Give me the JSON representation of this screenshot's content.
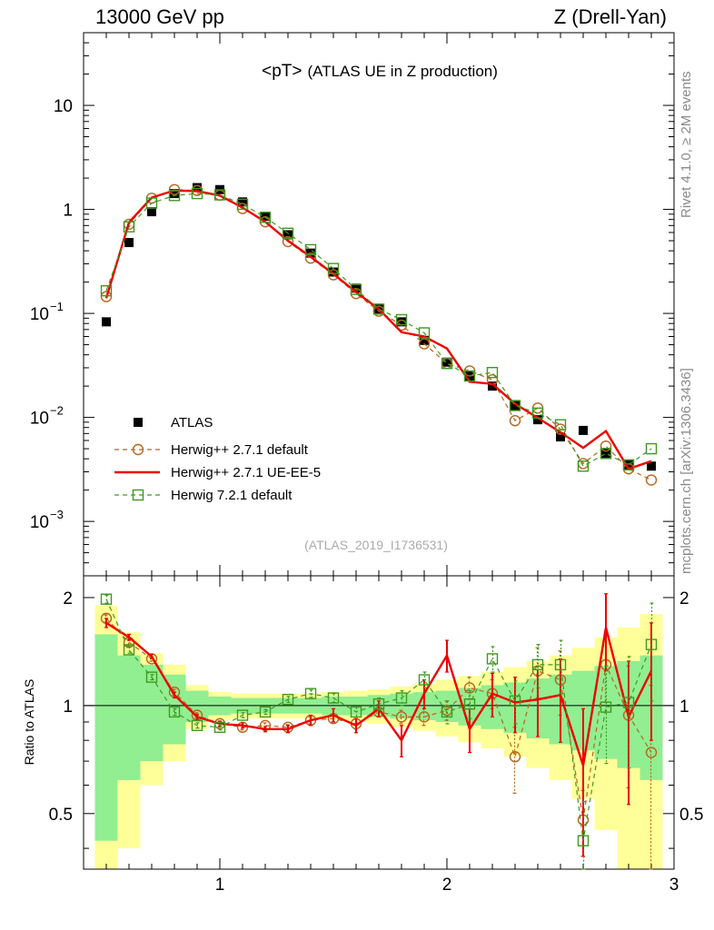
{
  "header": {
    "left": "13000 GeV pp",
    "right": "Z (Drell-Yan)"
  },
  "side_labels": {
    "rivet": "Rivet 4.1.0, ≥ 2M events",
    "mcplots": "mcplots.cern.ch [arXiv:1306.3436]"
  },
  "chart_data": {
    "type": "line",
    "title": "<pT>",
    "subtitle": "(ATLAS UE in Z production)",
    "analysis_id": "(ATLAS_2019_I1736531)",
    "xlabel": "",
    "ylabel": "",
    "ratio_ylabel": "Ratio to ATLAS",
    "xlim": [
      0.4,
      3.0
    ],
    "ylim": [
      0.0003,
      50
    ],
    "ratio_ylim": [
      0.35,
      2.3
    ],
    "yscale": "log",
    "xticks": [
      "1",
      "2",
      "3"
    ],
    "yticks_main": [
      {
        "value": 0.001,
        "base": "10",
        "exp": "−3"
      },
      {
        "value": 0.01,
        "base": "10",
        "exp": "−2"
      },
      {
        "value": 0.1,
        "base": "10",
        "exp": "−1"
      },
      {
        "value": 1,
        "label": "1"
      },
      {
        "value": 10,
        "label": "10"
      }
    ],
    "yticks_ratio": [
      "0.5",
      "1",
      "2"
    ],
    "legend_position": "bottom-left",
    "x": [
      0.5,
      0.6,
      0.7,
      0.8,
      0.9,
      1.0,
      1.1,
      1.2,
      1.3,
      1.4,
      1.5,
      1.6,
      1.7,
      1.8,
      1.9,
      2.0,
      2.1,
      2.2,
      2.3,
      2.4,
      2.5,
      2.6,
      2.7,
      2.8,
      2.9
    ],
    "series": [
      {
        "name": "ATLAS",
        "color": "#000000",
        "marker": "square-filled",
        "values": [
          0.083,
          0.48,
          0.95,
          1.42,
          1.62,
          1.55,
          1.18,
          0.86,
          0.57,
          0.38,
          0.25,
          0.175,
          0.11,
          0.083,
          0.055,
          0.034,
          0.025,
          0.02,
          0.013,
          0.0095,
          0.0065,
          0.0075,
          0.0045,
          0.0035,
          0.0034
        ],
        "ratio_band_inner": [
          0.58,
          0.38,
          0.3,
          0.22,
          0.1,
          0.06,
          0.05,
          0.05,
          0.05,
          0.05,
          0.06,
          0.06,
          0.07,
          0.08,
          0.09,
          0.1,
          0.12,
          0.14,
          0.16,
          0.19,
          0.22,
          0.25,
          0.29,
          0.33,
          0.38
        ],
        "ratio_band_outer": [
          0.9,
          0.6,
          0.4,
          0.3,
          0.14,
          0.09,
          0.08,
          0.08,
          0.08,
          0.08,
          0.09,
          0.1,
          0.11,
          0.13,
          0.15,
          0.18,
          0.21,
          0.24,
          0.28,
          0.33,
          0.38,
          0.45,
          0.55,
          0.65,
          0.8
        ]
      },
      {
        "name": "Herwig++ 2.7.1 default",
        "color": "#b5651d",
        "marker": "circle-open",
        "line": "dashed",
        "values": [
          0.145,
          0.72,
          1.28,
          1.55,
          1.52,
          1.37,
          1.02,
          0.76,
          0.49,
          0.34,
          0.235,
          0.155,
          0.105,
          0.077,
          0.051,
          0.033,
          0.028,
          0.023,
          0.0093,
          0.0123,
          0.0077,
          0.0036,
          0.0053,
          0.0032,
          0.0025
        ],
        "ratio": [
          1.75,
          1.5,
          1.35,
          1.09,
          0.94,
          0.89,
          0.87,
          0.88,
          0.87,
          0.91,
          0.92,
          0.89,
          0.96,
          0.93,
          0.93,
          0.97,
          1.12,
          1.08,
          0.72,
          1.25,
          1.18,
          0.48,
          1.3,
          0.94,
          0.74
        ],
        "ratio_err": [
          0.04,
          0.03,
          0.02,
          0.02,
          0.015,
          0.015,
          0.015,
          0.015,
          0.015,
          0.02,
          0.02,
          0.03,
          0.03,
          0.04,
          0.05,
          0.06,
          0.08,
          0.1,
          0.15,
          0.2,
          0.24,
          0.1,
          0.28,
          0.35,
          0.4
        ]
      },
      {
        "name": "Herwig++ 2.7.1 UE-EE-5",
        "color": "#ee0000",
        "marker": "none",
        "line": "solid",
        "values": [
          0.14,
          0.75,
          1.3,
          1.52,
          1.5,
          1.36,
          1.04,
          0.76,
          0.5,
          0.35,
          0.24,
          0.16,
          0.11,
          0.066,
          0.06,
          0.046,
          0.022,
          0.021,
          0.0135,
          0.0099,
          0.0072,
          0.0051,
          0.0074,
          0.0032,
          0.0038
        ],
        "ratio": [
          1.7,
          1.55,
          1.37,
          1.07,
          0.93,
          0.89,
          0.88,
          0.86,
          0.86,
          0.91,
          0.94,
          0.88,
          0.98,
          0.8,
          1.08,
          1.38,
          0.86,
          1.08,
          1.02,
          1.04,
          1.07,
          0.68,
          1.65,
          0.93,
          1.25
        ],
        "ratio_err": [
          0.05,
          0.03,
          0.02,
          0.02,
          0.015,
          0.015,
          0.015,
          0.015,
          0.02,
          0.03,
          0.04,
          0.04,
          0.05,
          0.08,
          0.1,
          0.14,
          0.12,
          0.15,
          0.18,
          0.22,
          0.28,
          0.3,
          0.4,
          0.4,
          0.45
        ]
      },
      {
        "name": "Herwig 7.2.1 default",
        "color": "#3e9a1f",
        "marker": "square-open",
        "line": "dashed",
        "values": [
          0.165,
          0.68,
          1.15,
          1.36,
          1.42,
          1.38,
          1.12,
          0.84,
          0.59,
          0.41,
          0.27,
          0.17,
          0.11,
          0.087,
          0.065,
          0.033,
          0.025,
          0.027,
          0.013,
          0.011,
          0.0085,
          0.0034,
          0.0045,
          0.0035,
          0.005
        ],
        "ratio": [
          1.98,
          1.43,
          1.2,
          0.96,
          0.88,
          0.87,
          0.94,
          0.96,
          1.04,
          1.08,
          1.05,
          0.96,
          1.01,
          1.05,
          1.18,
          0.96,
          1.01,
          1.35,
          1.03,
          1.3,
          1.3,
          0.42,
          0.99,
          1.02,
          1.48
        ],
        "ratio_err": [
          0.05,
          0.03,
          0.02,
          0.02,
          0.015,
          0.015,
          0.015,
          0.015,
          0.02,
          0.025,
          0.03,
          0.03,
          0.04,
          0.05,
          0.06,
          0.07,
          0.09,
          0.11,
          0.14,
          0.18,
          0.22,
          0.12,
          0.3,
          0.35,
          0.45
        ]
      }
    ]
  }
}
